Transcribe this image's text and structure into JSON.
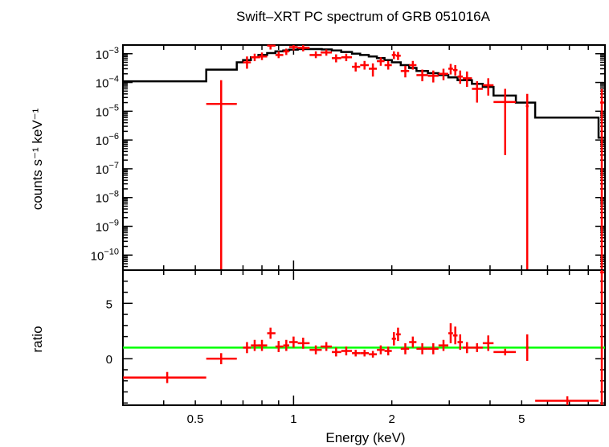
{
  "chart_data": [
    {
      "type": "scatter",
      "panel": "spectrum",
      "title": "Swift–XRT PC spectrum of GRB 051016A",
      "ylabel": "counts s⁻¹ keV⁻¹",
      "xlabel": "",
      "xscale": "log",
      "yscale": "log",
      "xlim": [
        0.3,
        9.0
      ],
      "ylim": [
        3e-11,
        0.002
      ],
      "x_ticks": [
        "0.5",
        "1",
        "2",
        "5"
      ],
      "y_ticks": [
        {
          "base": "10",
          "exp": "−3",
          "value": 0.001
        },
        {
          "base": "10",
          "exp": "−4",
          "value": 0.0001
        },
        {
          "base": "10",
          "exp": "−5",
          "value": 1e-05
        },
        {
          "base": "10",
          "exp": "−6",
          "value": 1e-06
        },
        {
          "base": "10",
          "exp": "−7",
          "value": 1e-07
        },
        {
          "base": "10",
          "exp": "−8",
          "value": 1e-08
        },
        {
          "base": "10",
          "exp": "−9",
          "value": 1e-09
        },
        {
          "base": "10",
          "exp": "−10",
          "value": 1e-10
        }
      ],
      "series": [
        {
          "kind": "data",
          "color": "#ff0000",
          "points": [
            {
              "x": 0.6,
              "xlo": 0.54,
              "xhi": 0.67,
              "y": 1.8e-05,
              "ylo": 3e-11,
              "yhi": 0.00012
            },
            {
              "x": 0.72,
              "xlo": 0.7,
              "xhi": 0.74,
              "y": 0.0005,
              "ylo": 0.0003,
              "yhi": 0.0008
            },
            {
              "x": 0.76,
              "xlo": 0.74,
              "xhi": 0.79,
              "y": 0.00075,
              "ylo": 0.00055,
              "yhi": 0.001
            },
            {
              "x": 0.8,
              "xlo": 0.78,
              "xhi": 0.83,
              "y": 0.0008,
              "ylo": 0.0006,
              "yhi": 0.0011
            },
            {
              "x": 0.85,
              "xlo": 0.83,
              "xhi": 0.88,
              "y": 0.0019,
              "ylo": 0.0014,
              "yhi": 0.0024
            },
            {
              "x": 0.9,
              "xlo": 0.88,
              "xhi": 0.93,
              "y": 0.0009,
              "ylo": 0.0007,
              "yhi": 0.0012
            },
            {
              "x": 0.95,
              "xlo": 0.93,
              "xhi": 0.97,
              "y": 0.0012,
              "ylo": 0.0009,
              "yhi": 0.0015
            },
            {
              "x": 1.0,
              "xlo": 0.97,
              "xhi": 1.03,
              "y": 0.0017,
              "ylo": 0.0013,
              "yhi": 0.0022
            },
            {
              "x": 1.07,
              "xlo": 1.03,
              "xhi": 1.12,
              "y": 0.0016,
              "ylo": 0.0012,
              "yhi": 0.002
            },
            {
              "x": 1.17,
              "xlo": 1.12,
              "xhi": 1.22,
              "y": 0.0009,
              "ylo": 0.0007,
              "yhi": 0.0012
            },
            {
              "x": 1.26,
              "xlo": 1.21,
              "xhi": 1.31,
              "y": 0.0011,
              "ylo": 0.00085,
              "yhi": 0.0014
            },
            {
              "x": 1.35,
              "xlo": 1.31,
              "xhi": 1.4,
              "y": 0.0007,
              "ylo": 0.0005,
              "yhi": 0.00095
            },
            {
              "x": 1.45,
              "xlo": 1.4,
              "xhi": 1.51,
              "y": 0.00075,
              "ylo": 0.00055,
              "yhi": 0.001
            },
            {
              "x": 1.55,
              "xlo": 1.51,
              "xhi": 1.6,
              "y": 0.00035,
              "ylo": 0.00024,
              "yhi": 0.0005
            },
            {
              "x": 1.65,
              "xlo": 1.6,
              "xhi": 1.7,
              "y": 0.0004,
              "ylo": 0.00028,
              "yhi": 0.00056
            },
            {
              "x": 1.75,
              "xlo": 1.7,
              "xhi": 1.8,
              "y": 0.0003,
              "ylo": 0.00016,
              "yhi": 0.00046
            },
            {
              "x": 1.85,
              "xlo": 1.8,
              "xhi": 1.9,
              "y": 0.00055,
              "ylo": 0.00038,
              "yhi": 0.00075
            },
            {
              "x": 1.95,
              "xlo": 1.9,
              "xhi": 2.0,
              "y": 0.0004,
              "ylo": 0.00028,
              "yhi": 0.00056
            },
            {
              "x": 2.03,
              "xlo": 2.0,
              "xhi": 2.06,
              "y": 0.0009,
              "ylo": 0.00065,
              "yhi": 0.0012
            },
            {
              "x": 2.09,
              "xlo": 2.06,
              "xhi": 2.13,
              "y": 0.00085,
              "ylo": 0.0006,
              "yhi": 0.00115
            },
            {
              "x": 2.2,
              "xlo": 2.13,
              "xhi": 2.26,
              "y": 0.00025,
              "ylo": 0.00015,
              "yhi": 0.00038
            },
            {
              "x": 2.32,
              "xlo": 2.26,
              "xhi": 2.38,
              "y": 0.0004,
              "ylo": 0.00028,
              "yhi": 0.00056
            },
            {
              "x": 2.48,
              "xlo": 2.38,
              "xhi": 2.58,
              "y": 0.00018,
              "ylo": 0.00011,
              "yhi": 0.00028
            },
            {
              "x": 2.68,
              "xlo": 2.58,
              "xhi": 2.78,
              "y": 0.00017,
              "ylo": 0.0001,
              "yhi": 0.00026
            },
            {
              "x": 2.88,
              "xlo": 2.78,
              "xhi": 2.98,
              "y": 0.0002,
              "ylo": 0.00012,
              "yhi": 0.0003
            },
            {
              "x": 3.03,
              "xlo": 2.98,
              "xhi": 3.08,
              "y": 0.0003,
              "ylo": 0.00019,
              "yhi": 0.00044
            },
            {
              "x": 3.13,
              "xlo": 3.08,
              "xhi": 3.18,
              "y": 0.00027,
              "ylo": 0.00017,
              "yhi": 0.0004
            },
            {
              "x": 3.24,
              "xlo": 3.18,
              "xhi": 3.3,
              "y": 0.00016,
              "ylo": 9e-05,
              "yhi": 0.00026
            },
            {
              "x": 3.4,
              "xlo": 3.3,
              "xhi": 3.52,
              "y": 0.00014,
              "ylo": 7e-05,
              "yhi": 0.00024
            },
            {
              "x": 3.65,
              "xlo": 3.52,
              "xhi": 3.8,
              "y": 6e-05,
              "ylo": 2e-05,
              "yhi": 0.00011
            },
            {
              "x": 3.95,
              "xlo": 3.8,
              "xhi": 4.1,
              "y": 8e-05,
              "ylo": 3.5e-05,
              "yhi": 0.00014
            },
            {
              "x": 4.45,
              "xlo": 4.1,
              "xhi": 4.8,
              "y": 2.1e-05,
              "ylo": 3e-07,
              "yhi": 6e-05
            },
            {
              "x": 5.2,
              "xlo": 5.15,
              "xhi": 5.25,
              "y": 1.5e-05,
              "ylo": 3e-11,
              "yhi": 4e-05
            },
            {
              "x": 8.8,
              "xlo": 8.7,
              "xhi": 8.95,
              "y": 2e-05,
              "ylo": 3e-11,
              "yhi": 6e-05
            }
          ]
        },
        {
          "kind": "model",
          "color": "#000000",
          "steps": [
            {
              "xlo": 0.3,
              "xhi": 0.54,
              "y": 0.00011
            },
            {
              "xlo": 0.54,
              "xhi": 0.67,
              "y": 0.00028
            },
            {
              "xlo": 0.67,
              "xhi": 0.7,
              "y": 0.0005
            },
            {
              "xlo": 0.7,
              "xhi": 0.74,
              "y": 0.0006
            },
            {
              "xlo": 0.74,
              "xhi": 0.78,
              "y": 0.00075
            },
            {
              "xlo": 0.78,
              "xhi": 0.83,
              "y": 0.0009
            },
            {
              "xlo": 0.83,
              "xhi": 0.88,
              "y": 0.00105
            },
            {
              "xlo": 0.88,
              "xhi": 0.93,
              "y": 0.0012
            },
            {
              "xlo": 0.93,
              "xhi": 0.97,
              "y": 0.0013
            },
            {
              "xlo": 0.97,
              "xhi": 1.03,
              "y": 0.00138
            },
            {
              "xlo": 1.03,
              "xhi": 1.12,
              "y": 0.00145
            },
            {
              "xlo": 1.12,
              "xhi": 1.22,
              "y": 0.00145
            },
            {
              "xlo": 1.22,
              "xhi": 1.31,
              "y": 0.0014
            },
            {
              "xlo": 1.31,
              "xhi": 1.4,
              "y": 0.0013
            },
            {
              "xlo": 1.4,
              "xhi": 1.51,
              "y": 0.00115
            },
            {
              "xlo": 1.51,
              "xhi": 1.6,
              "y": 0.001
            },
            {
              "xlo": 1.6,
              "xhi": 1.7,
              "y": 0.0009
            },
            {
              "xlo": 1.7,
              "xhi": 1.8,
              "y": 0.0008
            },
            {
              "xlo": 1.8,
              "xhi": 1.9,
              "y": 0.0007
            },
            {
              "xlo": 1.9,
              "xhi": 2.0,
              "y": 0.0006
            },
            {
              "xlo": 2.0,
              "xhi": 2.13,
              "y": 0.0005
            },
            {
              "xlo": 2.13,
              "xhi": 2.26,
              "y": 0.0004
            },
            {
              "xlo": 2.26,
              "xhi": 2.38,
              "y": 0.00032
            },
            {
              "xlo": 2.38,
              "xhi": 2.58,
              "y": 0.00025
            },
            {
              "xlo": 2.58,
              "xhi": 2.78,
              "y": 0.00021
            },
            {
              "xlo": 2.78,
              "xhi": 2.98,
              "y": 0.00018
            },
            {
              "xlo": 2.98,
              "xhi": 3.18,
              "y": 0.00015
            },
            {
              "xlo": 3.18,
              "xhi": 3.52,
              "y": 0.00012
            },
            {
              "xlo": 3.52,
              "xhi": 3.8,
              "y": 9e-05
            },
            {
              "xlo": 3.8,
              "xhi": 4.1,
              "y": 7e-05
            },
            {
              "xlo": 4.1,
              "xhi": 4.8,
              "y": 3.5e-05
            },
            {
              "xlo": 4.8,
              "xhi": 5.5,
              "y": 2e-05
            },
            {
              "xlo": 5.5,
              "xhi": 8.6,
              "y": 6e-06
            },
            {
              "xlo": 8.6,
              "xhi": 9.0,
              "y": 1.2e-06
            }
          ]
        }
      ]
    },
    {
      "type": "scatter",
      "panel": "ratio",
      "xlabel": "Energy (keV)",
      "ylabel": "ratio",
      "xscale": "log",
      "xlim": [
        0.3,
        9.0
      ],
      "ylim": [
        -4.2,
        8.0
      ],
      "x_ticks": [
        "0.5",
        "1",
        "2",
        "5"
      ],
      "y_ticks": [
        "0",
        "5"
      ],
      "reference_line": {
        "y": 1,
        "color": "#00ff00"
      },
      "series": [
        {
          "kind": "data",
          "color": "#ff0000",
          "points": [
            {
              "x": 0.41,
              "xlo": 0.3,
              "xhi": 0.54,
              "y": -1.7,
              "ylo": -2.2,
              "yhi": -1.2
            },
            {
              "x": 0.6,
              "xlo": 0.54,
              "xhi": 0.67,
              "y": 0.0,
              "ylo": -0.5,
              "yhi": 0.5
            },
            {
              "x": 0.72,
              "xlo": 0.7,
              "xhi": 0.74,
              "y": 1.0,
              "ylo": 0.5,
              "yhi": 1.5
            },
            {
              "x": 0.76,
              "xlo": 0.74,
              "xhi": 0.79,
              "y": 1.2,
              "ylo": 0.7,
              "yhi": 1.7
            },
            {
              "x": 0.8,
              "xlo": 0.78,
              "xhi": 0.83,
              "y": 1.2,
              "ylo": 0.7,
              "yhi": 1.7
            },
            {
              "x": 0.85,
              "xlo": 0.83,
              "xhi": 0.88,
              "y": 2.3,
              "ylo": 1.8,
              "yhi": 2.8
            },
            {
              "x": 0.9,
              "xlo": 0.88,
              "xhi": 0.93,
              "y": 1.1,
              "ylo": 0.6,
              "yhi": 1.6
            },
            {
              "x": 0.95,
              "xlo": 0.93,
              "xhi": 0.97,
              "y": 1.2,
              "ylo": 0.7,
              "yhi": 1.7
            },
            {
              "x": 1.0,
              "xlo": 0.97,
              "xhi": 1.03,
              "y": 1.5,
              "ylo": 1.0,
              "yhi": 2.0
            },
            {
              "x": 1.07,
              "xlo": 1.03,
              "xhi": 1.12,
              "y": 1.4,
              "ylo": 0.9,
              "yhi": 1.9
            },
            {
              "x": 1.17,
              "xlo": 1.12,
              "xhi": 1.22,
              "y": 0.8,
              "ylo": 0.4,
              "yhi": 1.2
            },
            {
              "x": 1.26,
              "xlo": 1.21,
              "xhi": 1.31,
              "y": 1.1,
              "ylo": 0.7,
              "yhi": 1.5
            },
            {
              "x": 1.35,
              "xlo": 1.31,
              "xhi": 1.4,
              "y": 0.6,
              "ylo": 0.2,
              "yhi": 1.0
            },
            {
              "x": 1.45,
              "xlo": 1.4,
              "xhi": 1.51,
              "y": 0.7,
              "ylo": 0.3,
              "yhi": 1.1
            },
            {
              "x": 1.55,
              "xlo": 1.51,
              "xhi": 1.6,
              "y": 0.5,
              "ylo": 0.2,
              "yhi": 0.8
            },
            {
              "x": 1.65,
              "xlo": 1.6,
              "xhi": 1.7,
              "y": 0.5,
              "ylo": 0.2,
              "yhi": 0.8
            },
            {
              "x": 1.75,
              "xlo": 1.7,
              "xhi": 1.8,
              "y": 0.4,
              "ylo": 0.1,
              "yhi": 0.7
            },
            {
              "x": 1.85,
              "xlo": 1.8,
              "xhi": 1.9,
              "y": 0.8,
              "ylo": 0.4,
              "yhi": 1.2
            },
            {
              "x": 1.95,
              "xlo": 1.9,
              "xhi": 2.0,
              "y": 0.7,
              "ylo": 0.3,
              "yhi": 1.1
            },
            {
              "x": 2.03,
              "xlo": 2.0,
              "xhi": 2.06,
              "y": 1.8,
              "ylo": 1.2,
              "yhi": 2.4
            },
            {
              "x": 2.09,
              "xlo": 2.06,
              "xhi": 2.13,
              "y": 2.2,
              "ylo": 1.6,
              "yhi": 2.8
            },
            {
              "x": 2.2,
              "xlo": 2.13,
              "xhi": 2.26,
              "y": 0.9,
              "ylo": 0.4,
              "yhi": 1.4
            },
            {
              "x": 2.32,
              "xlo": 2.26,
              "xhi": 2.38,
              "y": 1.5,
              "ylo": 1.0,
              "yhi": 2.0
            },
            {
              "x": 2.48,
              "xlo": 2.38,
              "xhi": 2.58,
              "y": 0.9,
              "ylo": 0.4,
              "yhi": 1.4
            },
            {
              "x": 2.68,
              "xlo": 2.58,
              "xhi": 2.78,
              "y": 0.9,
              "ylo": 0.4,
              "yhi": 1.4
            },
            {
              "x": 2.88,
              "xlo": 2.78,
              "xhi": 2.98,
              "y": 1.2,
              "ylo": 0.7,
              "yhi": 1.7
            },
            {
              "x": 3.03,
              "xlo": 2.98,
              "xhi": 3.08,
              "y": 2.3,
              "ylo": 1.4,
              "yhi": 3.2
            },
            {
              "x": 3.13,
              "xlo": 3.08,
              "xhi": 3.18,
              "y": 2.1,
              "ylo": 1.3,
              "yhi": 2.9
            },
            {
              "x": 3.24,
              "xlo": 3.18,
              "xhi": 3.3,
              "y": 1.5,
              "ylo": 0.8,
              "yhi": 2.2
            },
            {
              "x": 3.4,
              "xlo": 3.3,
              "xhi": 3.52,
              "y": 1.0,
              "ylo": 0.5,
              "yhi": 1.5
            },
            {
              "x": 3.65,
              "xlo": 3.52,
              "xhi": 3.8,
              "y": 1.0,
              "ylo": 0.6,
              "yhi": 1.4
            },
            {
              "x": 3.95,
              "xlo": 3.8,
              "xhi": 4.1,
              "y": 1.4,
              "ylo": 0.7,
              "yhi": 2.1
            },
            {
              "x": 4.45,
              "xlo": 4.1,
              "xhi": 4.8,
              "y": 0.6,
              "ylo": 0.3,
              "yhi": 0.9
            },
            {
              "x": 5.2,
              "xlo": 5.15,
              "xhi": 5.25,
              "y": 1.0,
              "ylo": -0.2,
              "yhi": 2.2
            },
            {
              "x": 6.9,
              "xlo": 5.5,
              "xhi": 8.6,
              "y": -3.8,
              "ylo": -4.2,
              "yhi": -3.4
            },
            {
              "x": 8.8,
              "xlo": 8.7,
              "xhi": 8.95,
              "y": 7.8,
              "ylo": -4.2,
              "yhi": 8.0
            }
          ]
        }
      ]
    }
  ]
}
